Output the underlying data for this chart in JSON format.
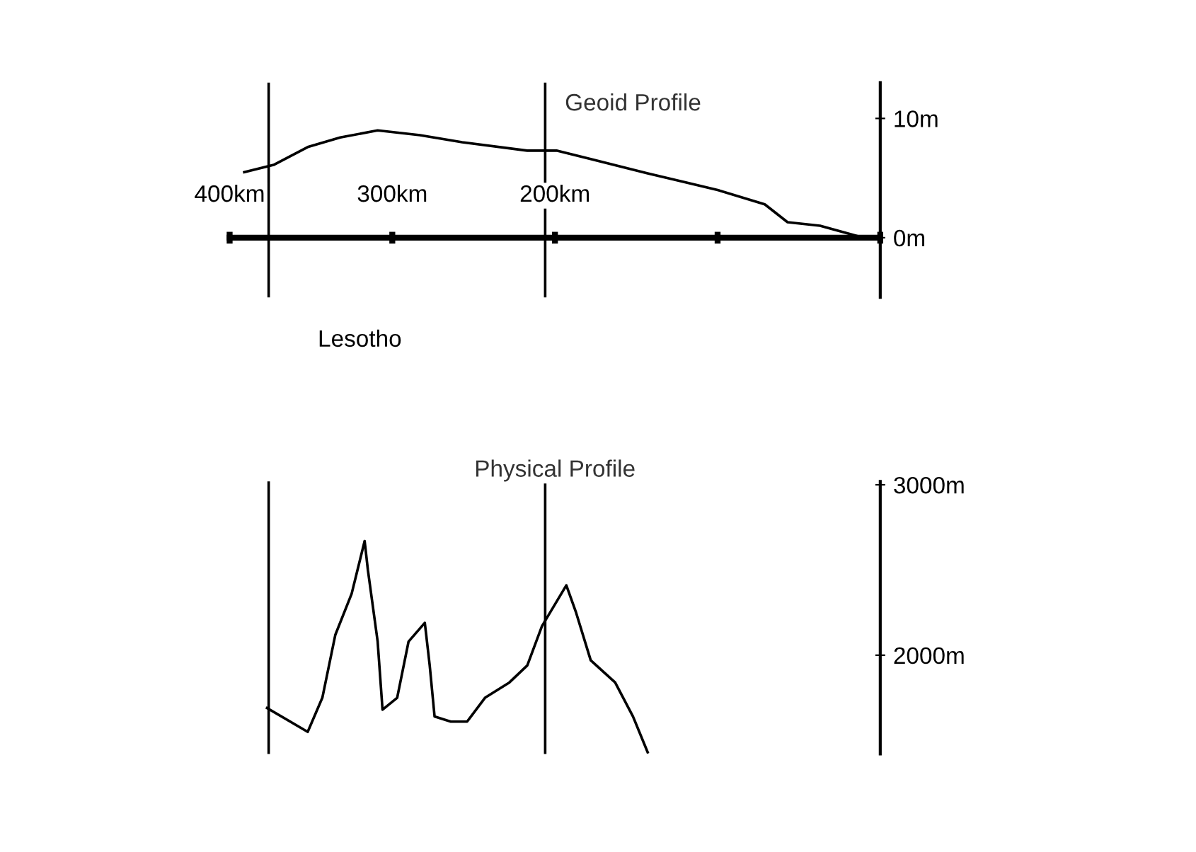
{
  "chart_data": [
    {
      "type": "line",
      "title": "Geoid Profile",
      "x": [
        391,
        373,
        352,
        332,
        309,
        283,
        257,
        217,
        199,
        178,
        143,
        100,
        71,
        57,
        37,
        13,
        0
      ],
      "series": [
        {
          "color": "#000000",
          "values": [
            5.5,
            6.1,
            7.6,
            8.4,
            9.0,
            8.6,
            8.0,
            7.3,
            7.3,
            6.6,
            5.4,
            4.0,
            2.8,
            1.3,
            1.0,
            0.1,
            0
          ]
        }
      ],
      "xlim": [
        400,
        0
      ],
      "ylim": [
        -5,
        13
      ],
      "xticks": [
        {
          "value": 400,
          "label": "400km"
        },
        {
          "value": 300,
          "label": "300km"
        },
        {
          "value": 200,
          "label": "200km"
        },
        {
          "value": 100,
          "label": null
        },
        {
          "value": 0,
          "label": null
        }
      ],
      "yticks": [
        {
          "value": 10,
          "label": "10m"
        },
        {
          "value": 0,
          "label": "0m"
        }
      ],
      "ref_lines": [
        {
          "axis": "x",
          "value": 376
        },
        {
          "axis": "x",
          "value": 206
        }
      ],
      "annotations": [
        "Lesotho"
      ],
      "grid": false,
      "legend": false,
      "line_style": "solid"
    },
    {
      "type": "line",
      "title": "Physical Profile",
      "x": [
        377,
        352,
        343,
        335,
        325,
        317,
        315,
        309,
        306,
        297,
        290,
        280,
        277,
        274,
        264,
        254,
        243,
        228,
        217,
        208,
        193,
        187,
        178,
        163,
        152,
        143
      ],
      "series": [
        {
          "color": "#000000",
          "values": [
            1690,
            1550,
            1750,
            2120,
            2360,
            2670,
            2500,
            2080,
            1680,
            1750,
            2080,
            2190,
            1940,
            1640,
            1610,
            1610,
            1750,
            1840,
            1940,
            2170,
            2410,
            2250,
            1970,
            1840,
            1640,
            1430
          ]
        }
      ],
      "xlim": [
        400,
        0
      ],
      "ylim": [
        1420,
        3020
      ],
      "yticks": [
        {
          "value": 3000,
          "label": "3000m"
        },
        {
          "value": 2000,
          "label": "2000m"
        }
      ],
      "tick_labels": "y",
      "ref_lines": [
        {
          "axis": "x",
          "value": 376
        },
        {
          "axis": "x",
          "value": 206
        }
      ],
      "grid": false,
      "legend": false,
      "line_style": "solid"
    }
  ]
}
